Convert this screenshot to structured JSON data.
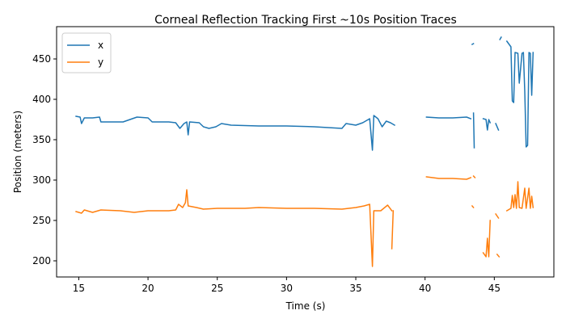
{
  "chart_data": {
    "type": "line",
    "title": "Corneal Reflection Tracking First ~10s Position Traces",
    "xlabel": "Time (s)",
    "ylabel": "Position (meters)",
    "xlim": [
      13.4,
      49.3
    ],
    "ylim": [
      180,
      490
    ],
    "xticks": [
      15,
      20,
      25,
      30,
      35,
      40,
      45
    ],
    "yticks": [
      200,
      250,
      300,
      350,
      400,
      450
    ],
    "grid": false,
    "legend_position": "top-left",
    "series": [
      {
        "name": "x",
        "color": "#1f77b4",
        "segments": [
          [
            [
              14.8,
              379
            ],
            [
              15.1,
              378
            ],
            [
              15.2,
              370
            ],
            [
              15.4,
              377
            ],
            [
              16.0,
              377
            ],
            [
              16.5,
              378
            ],
            [
              16.6,
              372
            ],
            [
              17.5,
              372
            ],
            [
              18.2,
              372
            ],
            [
              18.7,
              375
            ],
            [
              19.2,
              378
            ],
            [
              20.0,
              377
            ],
            [
              20.3,
              372
            ],
            [
              21.5,
              372
            ],
            [
              22.0,
              371
            ],
            [
              22.3,
              364
            ],
            [
              22.6,
              370
            ],
            [
              22.8,
              372
            ],
            [
              22.9,
              356
            ],
            [
              23.0,
              372
            ],
            [
              23.7,
              371
            ],
            [
              24.0,
              366
            ],
            [
              24.4,
              364
            ],
            [
              24.9,
              366
            ],
            [
              25.3,
              370
            ],
            [
              26.0,
              368
            ],
            [
              28.0,
              367
            ],
            [
              30.0,
              367
            ],
            [
              32.0,
              366
            ],
            [
              34.0,
              364
            ],
            [
              34.3,
              370
            ],
            [
              35.0,
              368
            ],
            [
              35.5,
              371
            ],
            [
              36.0,
              376
            ],
            [
              36.2,
              337
            ],
            [
              36.3,
              380
            ],
            [
              36.6,
              376
            ],
            [
              36.9,
              366
            ],
            [
              37.2,
              373
            ],
            [
              37.5,
              371
            ],
            [
              37.8,
              368
            ]
          ],
          [
            [
              40.1,
              378
            ],
            [
              41.0,
              377
            ],
            [
              42.0,
              377
            ],
            [
              43.0,
              378
            ],
            [
              43.3,
              376
            ]
          ],
          [
            [
              43.4,
              468
            ],
            [
              43.5,
              469
            ]
          ],
          [
            [
              43.5,
              383
            ],
            [
              43.55,
              340
            ]
          ],
          [
            [
              44.2,
              376
            ],
            [
              44.4,
              375
            ],
            [
              44.5,
              362
            ],
            [
              44.6,
              375
            ],
            [
              44.7,
              371
            ]
          ],
          [
            [
              45.1,
              370
            ],
            [
              45.3,
              362
            ]
          ],
          [
            [
              45.4,
              474
            ],
            [
              45.5,
              477
            ]
          ],
          [
            [
              45.9,
              472
            ],
            [
              46.2,
              465
            ],
            [
              46.3,
              398
            ],
            [
              46.4,
              396
            ],
            [
              46.5,
              458
            ],
            [
              46.7,
              457
            ],
            [
              46.8,
              420
            ],
            [
              47.0,
              457
            ],
            [
              47.1,
              458
            ],
            [
              47.2,
              410
            ],
            [
              47.3,
              341
            ],
            [
              47.4,
              343
            ],
            [
              47.5,
              458
            ],
            [
              47.6,
              457
            ],
            [
              47.7,
              405
            ],
            [
              47.8,
              458
            ]
          ]
        ]
      },
      {
        "name": "y",
        "color": "#ff7f0e",
        "segments": [
          [
            [
              14.8,
              261
            ],
            [
              15.2,
              259
            ],
            [
              15.4,
              263
            ],
            [
              16.0,
              260
            ],
            [
              16.6,
              263
            ],
            [
              18.0,
              262
            ],
            [
              19.0,
              260
            ],
            [
              20.0,
              262
            ],
            [
              21.5,
              262
            ],
            [
              22.0,
              263
            ],
            [
              22.2,
              270
            ],
            [
              22.5,
              266
            ],
            [
              22.7,
              272
            ],
            [
              22.8,
              288
            ],
            [
              22.9,
              268
            ],
            [
              23.5,
              266
            ],
            [
              24.0,
              264
            ],
            [
              25.0,
              265
            ],
            [
              27.0,
              265
            ],
            [
              28.0,
              266
            ],
            [
              30.0,
              265
            ],
            [
              32.0,
              265
            ],
            [
              34.0,
              264
            ],
            [
              35.0,
              266
            ],
            [
              35.6,
              268
            ],
            [
              36.0,
              270
            ],
            [
              36.2,
              193
            ],
            [
              36.3,
              262
            ],
            [
              36.8,
              262
            ],
            [
              37.3,
              269
            ],
            [
              37.6,
              262
            ]
          ],
          [
            [
              37.6,
              215
            ],
            [
              37.7,
              262
            ]
          ],
          [
            [
              40.1,
              304
            ],
            [
              41.0,
              302
            ],
            [
              42.0,
              302
            ],
            [
              43.0,
              301
            ],
            [
              43.3,
              303
            ]
          ],
          [
            [
              43.4,
              268
            ],
            [
              43.5,
              266
            ]
          ],
          [
            [
              43.5,
              305
            ],
            [
              43.6,
              303
            ]
          ],
          [
            [
              44.2,
              210
            ],
            [
              44.4,
              205
            ],
            [
              44.5,
              228
            ],
            [
              44.6,
              205
            ],
            [
              44.7,
              250
            ]
          ],
          [
            [
              45.1,
              258
            ],
            [
              45.3,
              253
            ]
          ],
          [
            [
              45.2,
              208
            ],
            [
              45.35,
              205
            ]
          ],
          [
            [
              45.9,
              262
            ],
            [
              46.2,
              265
            ],
            [
              46.3,
              281
            ],
            [
              46.4,
              266
            ],
            [
              46.5,
              282
            ],
            [
              46.6,
              265
            ],
            [
              46.7,
              298
            ],
            [
              46.8,
              266
            ],
            [
              47.0,
              265
            ],
            [
              47.2,
              290
            ],
            [
              47.3,
              265
            ],
            [
              47.5,
              290
            ],
            [
              47.6,
              265
            ],
            [
              47.7,
              280
            ],
            [
              47.8,
              266
            ]
          ]
        ]
      }
    ]
  }
}
